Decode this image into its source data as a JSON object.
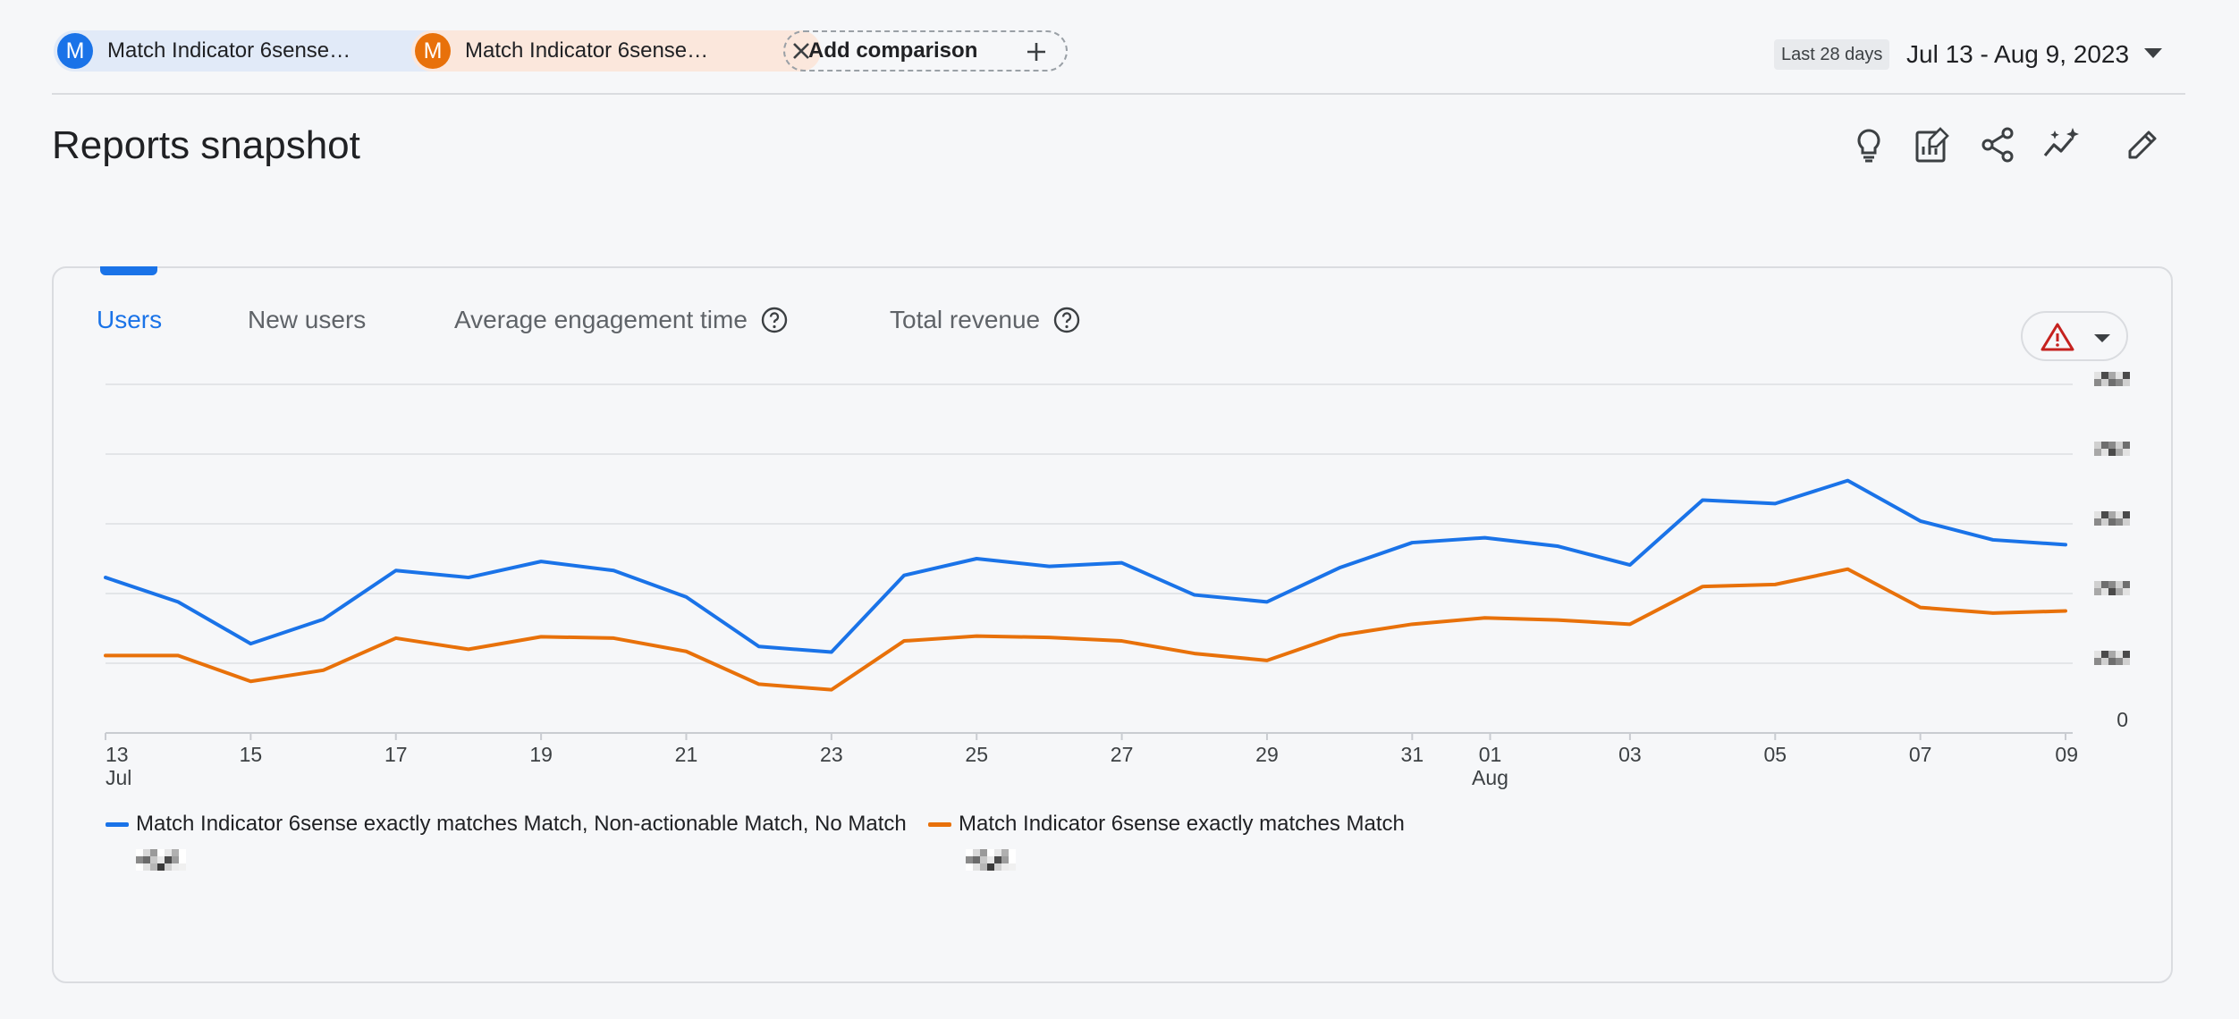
{
  "comparisons": [
    {
      "avatar": "M",
      "label": "Match Indicator 6sense…",
      "color": "#1a73e8"
    },
    {
      "avatar": "M",
      "label": "Match Indicator 6sense…",
      "color": "#e8710a"
    }
  ],
  "add_comparison_label": "Add comparison",
  "date": {
    "badge": "Last 28 days",
    "range": "Jul 13 - Aug 9, 2023"
  },
  "page_title": "Reports snapshot",
  "toolbar_icons": [
    "lightbulb-icon",
    "customize-report-icon",
    "share-icon",
    "insights-icon",
    "edit-icon"
  ],
  "tabs": [
    {
      "label": "Users",
      "active": true,
      "help": false
    },
    {
      "label": "New users",
      "active": false,
      "help": false
    },
    {
      "label": "Average engagement time",
      "active": false,
      "help": true
    },
    {
      "label": "Total revenue",
      "active": false,
      "help": true
    }
  ],
  "accent_color": "#1a73e8",
  "chart_data": {
    "type": "line",
    "x": [
      "13\nJul",
      "14",
      "15",
      "16",
      "17",
      "18",
      "19",
      "20",
      "21",
      "22",
      "23",
      "24",
      "25",
      "26",
      "27",
      "28",
      "29",
      "30",
      "31",
      "01\nAug",
      "02",
      "03",
      "04",
      "05",
      "06",
      "07",
      "08",
      "09"
    ],
    "x_tick_labels": [
      {
        "day": "13",
        "month": "Jul"
      },
      {
        "day": "15"
      },
      {
        "day": "17"
      },
      {
        "day": "19"
      },
      {
        "day": "21"
      },
      {
        "day": "23"
      },
      {
        "day": "25"
      },
      {
        "day": "27"
      },
      {
        "day": "29"
      },
      {
        "day": "31"
      },
      {
        "day": "01",
        "month": "Aug"
      },
      {
        "day": "03"
      },
      {
        "day": "05"
      },
      {
        "day": "07"
      },
      {
        "day": "09"
      }
    ],
    "y_tick_labels": [
      "0"
    ],
    "y_note": "Y-axis values other than 0 are pixelated/obscured; series values given in relative gridline units (5 gridlines above 0).",
    "ylim": [
      0,
      5
    ],
    "series": [
      {
        "name": "Match Indicator 6sense exactly matches Match, Non-actionable Match, No Match",
        "color": "#1a73e8",
        "values": [
          2.23,
          1.88,
          1.28,
          1.63,
          2.33,
          2.23,
          2.46,
          2.33,
          1.95,
          1.24,
          1.16,
          2.26,
          2.5,
          2.39,
          2.44,
          1.98,
          1.88,
          2.37,
          2.73,
          2.8,
          2.68,
          2.41,
          3.34,
          3.29,
          3.62,
          3.04,
          2.77,
          2.7
        ]
      },
      {
        "name": "Match Indicator 6sense exactly matches Match",
        "color": "#e8710a",
        "values": [
          1.11,
          1.11,
          0.74,
          0.9,
          1.36,
          1.2,
          1.38,
          1.36,
          1.17,
          0.7,
          0.62,
          1.32,
          1.39,
          1.37,
          1.32,
          1.14,
          1.04,
          1.4,
          1.56,
          1.65,
          1.62,
          1.56,
          2.1,
          2.13,
          2.35,
          1.8,
          1.72,
          1.75
        ]
      }
    ],
    "grid": true,
    "legend_position": "bottom-left"
  }
}
